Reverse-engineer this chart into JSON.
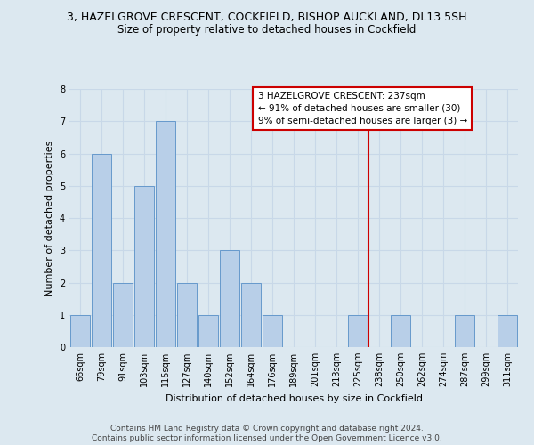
{
  "title": "3, HAZELGROVE CRESCENT, COCKFIELD, BISHOP AUCKLAND, DL13 5SH",
  "subtitle": "Size of property relative to detached houses in Cockfield",
  "xlabel": "Distribution of detached houses by size in Cockfield",
  "ylabel": "Number of detached properties",
  "categories": [
    "66sqm",
    "79sqm",
    "91sqm",
    "103sqm",
    "115sqm",
    "127sqm",
    "140sqm",
    "152sqm",
    "164sqm",
    "176sqm",
    "189sqm",
    "201sqm",
    "213sqm",
    "225sqm",
    "238sqm",
    "250sqm",
    "262sqm",
    "274sqm",
    "287sqm",
    "299sqm",
    "311sqm"
  ],
  "bar_heights": [
    1,
    6,
    2,
    5,
    7,
    2,
    1,
    3,
    2,
    1,
    0,
    0,
    0,
    1,
    0,
    1,
    0,
    0,
    1,
    0,
    1
  ],
  "bar_color": "#b8cfe8",
  "bar_edge_color": "#6699cc",
  "grid_color": "#c8d8e8",
  "background_color": "#dce8f0",
  "vline_index": 14,
  "vline_color": "#cc0000",
  "annotation_title": "3 HAZELGROVE CRESCENT: 237sqm",
  "annotation_line1": "← 91% of detached houses are smaller (30)",
  "annotation_line2": "9% of semi-detached houses are larger (3) →",
  "annotation_box_color": "#cc0000",
  "annotation_bg": "#ffffff",
  "ylim": [
    0,
    8
  ],
  "yticks": [
    0,
    1,
    2,
    3,
    4,
    5,
    6,
    7,
    8
  ],
  "footer1": "Contains HM Land Registry data © Crown copyright and database right 2024.",
  "footer2": "Contains public sector information licensed under the Open Government Licence v3.0.",
  "title_fontsize": 9,
  "subtitle_fontsize": 8.5,
  "axis_label_fontsize": 8,
  "tick_fontsize": 7,
  "annotation_fontsize": 7.5,
  "footer_fontsize": 6.5,
  "ylabel_fontsize": 8
}
